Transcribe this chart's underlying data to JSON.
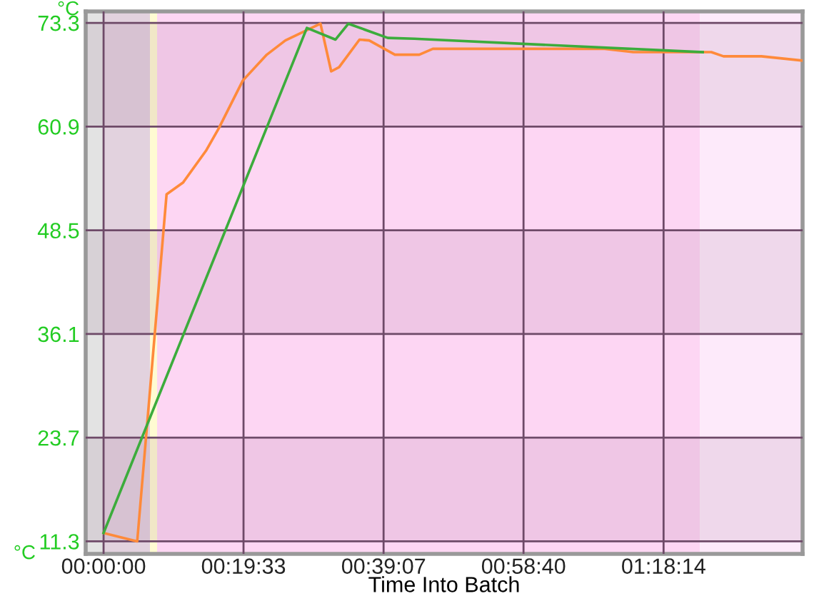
{
  "chart_data": {
    "type": "line",
    "xlabel": "Time Into Batch",
    "ylabel": "°C",
    "xlim": [
      -2.5,
      97.65
    ],
    "ylim": [
      9.8,
      74.67
    ],
    "xticks": [
      {
        "value": 0,
        "label": "00:00:00"
      },
      {
        "value": 19.55,
        "label": "00:19:33"
      },
      {
        "value": 39.117,
        "label": "00:39:07"
      },
      {
        "value": 58.667,
        "label": "00:58:40"
      },
      {
        "value": 78.233,
        "label": "01:18:14"
      }
    ],
    "yticks": [
      11.3,
      23.7,
      36.1,
      48.5,
      60.9,
      73.3
    ],
    "grid": true,
    "marker": "none",
    "line_style": "solid",
    "bands": [
      {
        "axis": "x",
        "from": -2.5,
        "to": 0,
        "color": "#e3e3e3"
      },
      {
        "axis": "x",
        "from": 0,
        "to": 6.48,
        "color": "#e2d2de"
      },
      {
        "axis": "x",
        "from": 6.48,
        "to": 7.48,
        "color": "#fffbd2"
      },
      {
        "axis": "x",
        "from": 7.48,
        "to": 83.3,
        "color": "#fdd6f3"
      },
      {
        "axis": "x",
        "from": 83.3,
        "to": 97.65,
        "color": "#fdeafa"
      },
      {
        "axis": "y",
        "from": 60.9,
        "to": 73.3,
        "color": "#7a3a6a"
      },
      {
        "axis": "y",
        "from": 36.1,
        "to": 48.5,
        "color": "#7a3a6a"
      },
      {
        "axis": "y",
        "from": 11.3,
        "to": 23.7,
        "color": "#7a3a6a"
      }
    ],
    "series": [
      {
        "color": "#3cac3c",
        "x": [
          0,
          28.4,
          32.4,
          34.2,
          39.7,
          43.4,
          83.7
        ],
        "values": [
          12.3,
          72.7,
          71.3,
          73.2,
          71.5,
          71.4,
          69.8
        ]
      },
      {
        "color": "#ff8a3a",
        "x": [
          0,
          4.7,
          8.8,
          11.1,
          14.3,
          16.1,
          19.45,
          22.8,
          25.4,
          30.3,
          31.8,
          32.9,
          35.75,
          37.1,
          40.7,
          44.1,
          46.0,
          70.0,
          74.0,
          84.9,
          86.6,
          91.9,
          97.6
        ],
        "values": [
          12.3,
          11.3,
          52.8,
          54.2,
          58.0,
          60.7,
          66.4,
          69.5,
          71.2,
          73.2,
          67.5,
          68.0,
          71.3,
          71.2,
          69.5,
          69.5,
          70.2,
          70.2,
          69.8,
          69.8,
          69.3,
          69.3,
          68.8
        ]
      }
    ]
  }
}
